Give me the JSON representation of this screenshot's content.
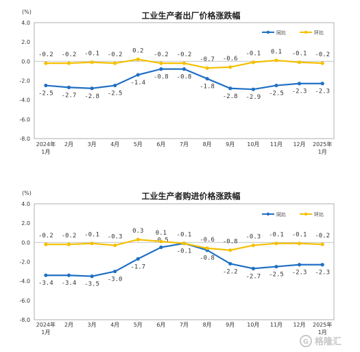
{
  "chart_data": [
    {
      "type": "line",
      "title": "工业生产者出厂价格涨跌幅",
      "unit": "(%)",
      "categories": [
        "2024年|1月",
        "2月",
        "3月",
        "4月",
        "5月",
        "6月",
        "7月",
        "8月",
        "9月",
        "10月",
        "11月",
        "12月",
        "2025年|1月"
      ],
      "ylim": [
        -8.0,
        4.0
      ],
      "yticks": [
        "4.0",
        "2.0",
        "0.0",
        "-2.0",
        "-4.0",
        "-6.0",
        "-8.0"
      ],
      "legend_position": "top-right",
      "series": [
        {
          "name": "同比",
          "color": "#1f6fc4",
          "values": [
            -2.5,
            -2.7,
            -2.8,
            -2.5,
            -1.4,
            -0.8,
            -0.8,
            -1.8,
            -2.8,
            -2.9,
            -2.5,
            -2.3,
            -2.3
          ],
          "labels": [
            "-2.5",
            "-2.7",
            "-2.8",
            "-2.5",
            "-1.4",
            "-0.8",
            "-0.8",
            "-1.8",
            "-2.8",
            "-2.9",
            "-2.5",
            "-2.3",
            "-2.3"
          ]
        },
        {
          "name": "环比",
          "color": "#f5c000",
          "values": [
            -0.2,
            -0.2,
            -0.1,
            -0.2,
            0.2,
            -0.2,
            -0.2,
            -0.7,
            -0.6,
            -0.1,
            0.1,
            -0.1,
            -0.2
          ],
          "labels": [
            "-0.2",
            "-0.2",
            "-0.1",
            "-0.2",
            "0.2",
            "-0.2",
            "-0.2",
            "-0.7",
            "-0.6",
            "-0.1",
            "0.1",
            "-0.1",
            "-0.2"
          ]
        }
      ]
    },
    {
      "type": "line",
      "title": "工业生产者购进价格涨跌幅",
      "unit": "(%)",
      "categories": [
        "2024年|1月",
        "2月",
        "3月",
        "4月",
        "5月",
        "6月",
        "7月",
        "8月",
        "9月",
        "10月",
        "11月",
        "12月",
        "2025年|1月"
      ],
      "ylim": [
        -8.0,
        4.0
      ],
      "yticks": [
        "4.0",
        "2.0",
        "0.0",
        "-2.0",
        "-4.0",
        "-6.0",
        "-8.0"
      ],
      "legend_position": "top-right",
      "series": [
        {
          "name": "同比",
          "color": "#1f6fc4",
          "values": [
            -3.4,
            -3.4,
            -3.5,
            -3.0,
            -1.7,
            -0.5,
            -0.1,
            -0.8,
            -2.2,
            -2.7,
            -2.5,
            -2.3,
            -2.3
          ],
          "labels": [
            "-3.4",
            "-3.4",
            "-3.5",
            "-3.0",
            "-1.7",
            "-0.5",
            "-0.1",
            "-0.8",
            "-2.2",
            "-2.7",
            "-2.5",
            "-2.3",
            "-2.3"
          ]
        },
        {
          "name": "环比",
          "color": "#f5c000",
          "values": [
            -0.2,
            -0.2,
            -0.1,
            -0.3,
            0.3,
            0.1,
            -0.1,
            -0.6,
            -0.8,
            -0.3,
            -0.1,
            -0.1,
            -0.2
          ],
          "labels": [
            "-0.2",
            "-0.2",
            "-0.1",
            "-0.3",
            "0.3",
            "0.1",
            "-0.1",
            "-0.6",
            "-0.8",
            "-0.3",
            "-0.1",
            "-0.1",
            "-0.2"
          ]
        }
      ]
    }
  ],
  "watermark": {
    "text": "格隆汇",
    "icon": "logo-g-icon"
  }
}
